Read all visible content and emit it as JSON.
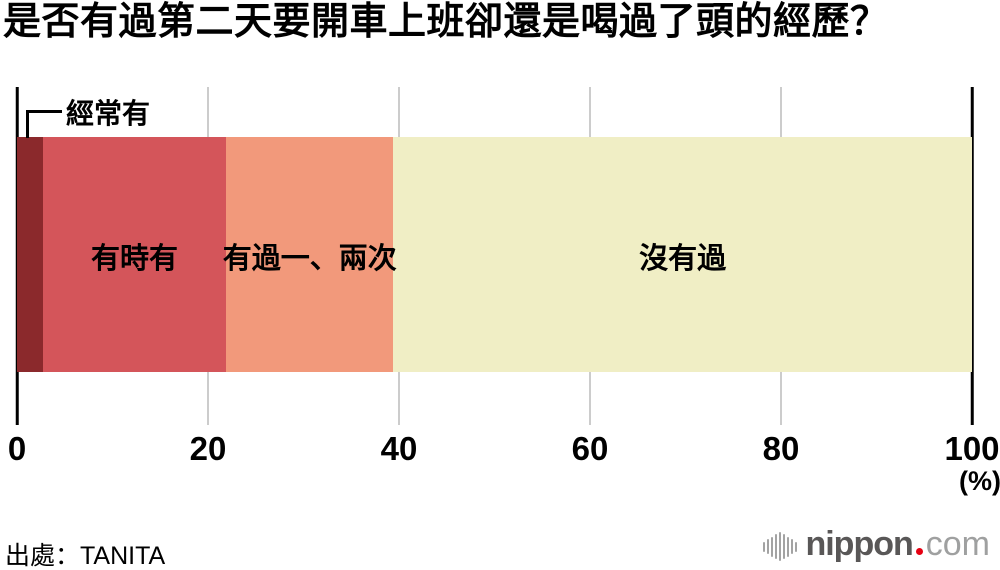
{
  "title": "是否有過第二天要開車上班卻還是喝過了頭的經歷？",
  "source": "出處：TANITA",
  "logo": {
    "brand": "nippon.com",
    "text_bold": "nippon",
    "text_light": "com",
    "dot_color": "#E60012"
  },
  "chart_data": {
    "type": "bar",
    "variant": "horizontal_stacked_single_bar",
    "title": "是否有過第二天要開車上班卻還是喝過了頭的經歷？",
    "categories": [
      "經常有",
      "有時有",
      "有過一、兩次",
      "沒有過"
    ],
    "values": [
      2.7,
      19.2,
      17.5,
      60.6
    ],
    "unit": "%",
    "colors": [
      "#8B292C",
      "#D4555A",
      "#F2997B",
      "#F0EEC5"
    ],
    "x_ticks": [
      "0",
      "20",
      "40",
      "60",
      "80",
      "100"
    ],
    "x_axis_unit_label": "(%)",
    "xlim": [
      0,
      100
    ],
    "grid": true,
    "legend_position": "none",
    "label_placement": "first category labeled via outside callout, others centered inside segments"
  }
}
